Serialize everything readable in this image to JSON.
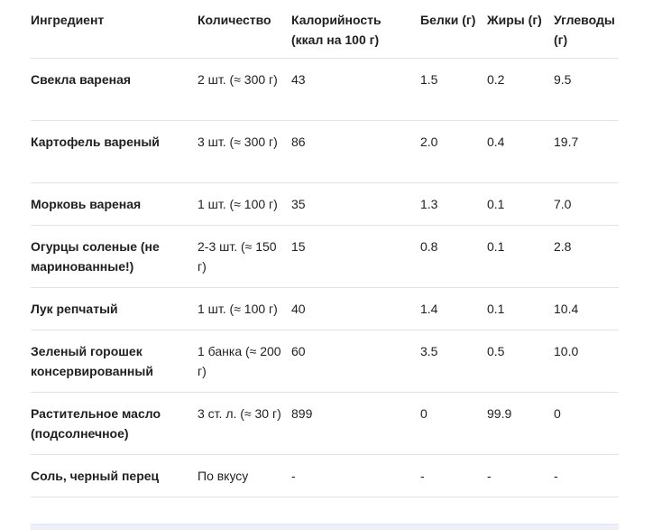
{
  "table": {
    "headers": [
      "Ингредиент",
      "Количество",
      "Калорийность (ккал на 100 г)",
      "Белки (г)",
      "Жиры (г)",
      "Углеводы (г)"
    ],
    "rows": [
      [
        "Свекла вареная",
        "2 шт. (≈ 300 г)",
        "43",
        "1.5",
        "0.2",
        "9.5"
      ],
      [
        "Картофель вареный",
        "3 шт. (≈ 300 г)",
        "86",
        "2.0",
        "0.4",
        "19.7"
      ],
      [
        "Морковь вареная",
        "1 шт. (≈ 100 г)",
        "35",
        "1.3",
        "0.1",
        "7.0"
      ],
      [
        "Огурцы соленые (не маринованные!)",
        "2-3 шт. (≈ 150 г)",
        "15",
        "0.8",
        "0.1",
        "2.8"
      ],
      [
        "Лук репчатый",
        "1 шт. (≈ 100 г)",
        "40",
        "1.4",
        "0.1",
        "10.4"
      ],
      [
        "Зеленый горошек консервированный",
        "1 банка (≈ 200 г)",
        "60",
        "3.5",
        "0.5",
        "10.0"
      ],
      [
        "Растительное масло (подсолнечное)",
        "3 ст. л. (≈ 30 г)",
        "899",
        "0",
        "99.9",
        "0"
      ],
      [
        "Соль, черный перец",
        "По вкусу",
        "-",
        "-",
        "-",
        "-"
      ]
    ]
  }
}
